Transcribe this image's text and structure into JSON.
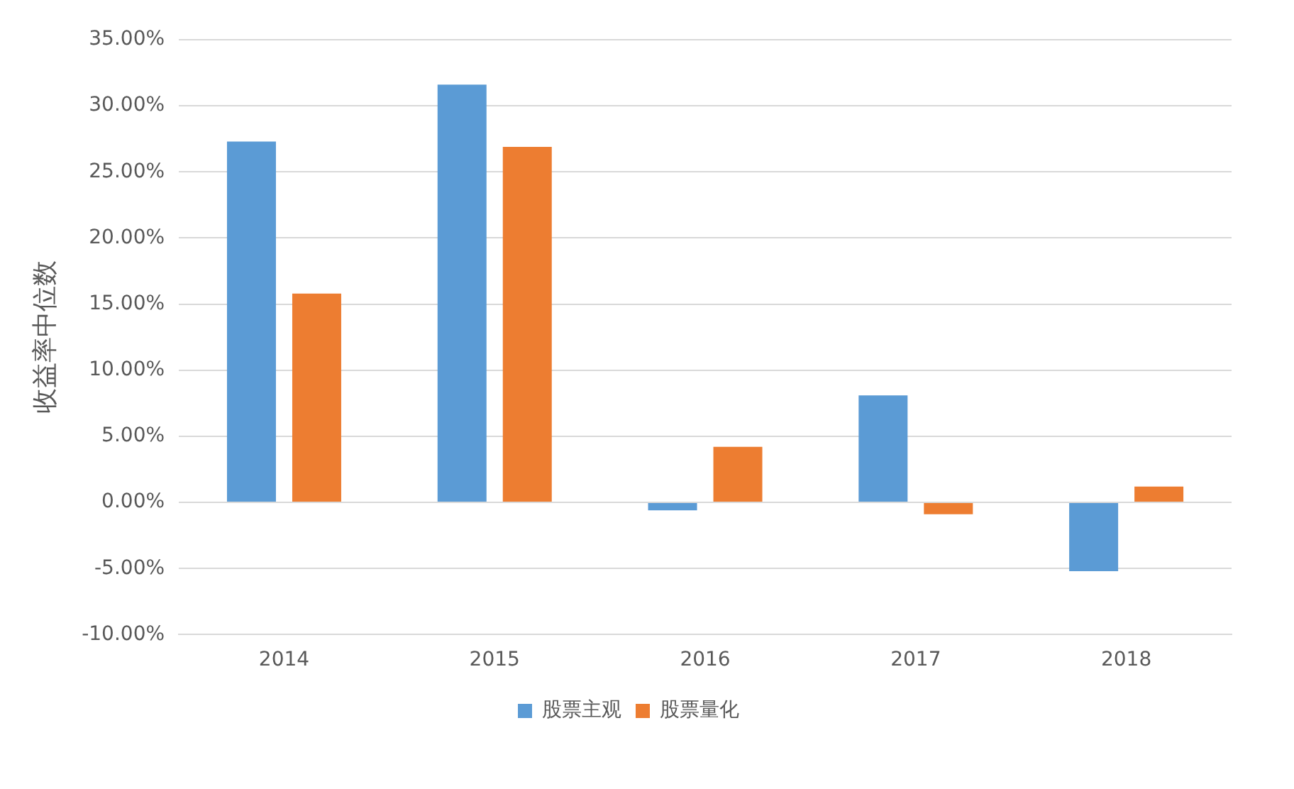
{
  "chart_data": {
    "type": "bar",
    "ylabel": "收益率中位数",
    "categories": [
      "2014",
      "2015",
      "2016",
      "2017",
      "2018"
    ],
    "series": [
      {
        "name": "股票主观",
        "color": "#5b9bd5",
        "values": [
          27.3,
          31.6,
          -0.6,
          8.1,
          -5.2
        ]
      },
      {
        "name": "股票量化",
        "color": "#ed7d31",
        "values": [
          15.8,
          26.9,
          4.2,
          -0.9,
          1.2
        ]
      }
    ],
    "ylim": [
      -10,
      35
    ],
    "yticks": [
      {
        "value": -10,
        "label": "-10.00%"
      },
      {
        "value": -5,
        "label": "-5.00%"
      },
      {
        "value": 0,
        "label": "0.00%"
      },
      {
        "value": 5,
        "label": "5.00%"
      },
      {
        "value": 10,
        "label": "10.00%"
      },
      {
        "value": 15,
        "label": "15.00%"
      },
      {
        "value": 20,
        "label": "20.00%"
      },
      {
        "value": 25,
        "label": "25.00%"
      },
      {
        "value": 30,
        "label": "30.00%"
      },
      {
        "value": 35,
        "label": "35.00%"
      }
    ],
    "grid": "y",
    "legend": "bottom"
  }
}
